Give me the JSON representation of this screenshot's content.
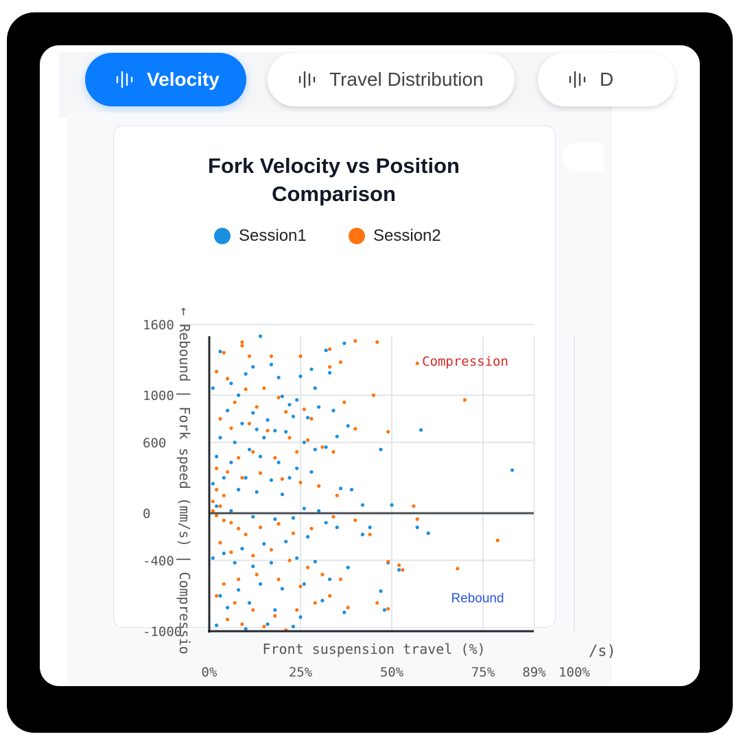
{
  "tabs": [
    {
      "label": "Velocity",
      "icon": "waveform-icon",
      "active": true
    },
    {
      "label": "Travel Distribution",
      "icon": "waveform-icon",
      "active": false
    },
    {
      "label": "D",
      "icon": "waveform-icon",
      "active": false
    }
  ],
  "colors": {
    "accent": "#0a7cff",
    "session1": "#1a8fe0",
    "session2": "#ff7410",
    "compression": "#d42a2a",
    "rebound": "#2b55e0"
  },
  "chart_data": {
    "type": "scatter",
    "title": "Fork Velocity vs Position Comparison",
    "title_lines": [
      "Fork Velocity vs Position",
      "Comparison"
    ],
    "xlabel": "Front suspension travel (%)",
    "ylabel": "← Rebound | Fork speed (mm/s) | Compressio",
    "x_tick_labels": [
      "0%",
      "25%",
      "50%",
      "75%",
      "89%",
      "100%"
    ],
    "x_ticks": [
      0,
      25,
      50,
      75,
      89,
      100
    ],
    "y_tick_labels": [
      "1600",
      "1000",
      "600",
      "0",
      "-400",
      "-1000"
    ],
    "y_ticks": [
      1600,
      1000,
      600,
      0,
      -400,
      -1000
    ],
    "xlim": [
      0,
      100
    ],
    "ylim": [
      -1000,
      1600
    ],
    "grid": true,
    "legend_position": "top",
    "annotations": {
      "compression": "Compression",
      "rebound": "Rebound"
    },
    "clipped_label": "/s)",
    "series": [
      {
        "name": "Session1",
        "points": [
          [
            14,
            1500
          ],
          [
            37,
            1440
          ],
          [
            32,
            1380
          ],
          [
            3,
            1370
          ],
          [
            12,
            1240
          ],
          [
            17,
            1260
          ],
          [
            28,
            1220
          ],
          [
            25,
            1160
          ],
          [
            19,
            1150
          ],
          [
            10,
            1180
          ],
          [
            6,
            1100
          ],
          [
            1,
            1060
          ],
          [
            8,
            1000
          ],
          [
            22,
            920
          ],
          [
            24,
            960
          ],
          [
            20,
            990
          ],
          [
            30,
            900
          ],
          [
            33,
            1190
          ],
          [
            23,
            820
          ],
          [
            16,
            790
          ],
          [
            27,
            810
          ],
          [
            12,
            850
          ],
          [
            5,
            870
          ],
          [
            9,
            760
          ],
          [
            13,
            710
          ],
          [
            18,
            700
          ],
          [
            26,
            600
          ],
          [
            29,
            540
          ],
          [
            35,
            650
          ],
          [
            32,
            560
          ],
          [
            21,
            690
          ],
          [
            15,
            640
          ],
          [
            7,
            600
          ],
          [
            3,
            640
          ],
          [
            11,
            540
          ],
          [
            2,
            480
          ],
          [
            6,
            430
          ],
          [
            14,
            480
          ],
          [
            19,
            430
          ],
          [
            24,
            380
          ],
          [
            28,
            350
          ],
          [
            22,
            300
          ],
          [
            17,
            280
          ],
          [
            10,
            300
          ],
          [
            4,
            300
          ],
          [
            1,
            250
          ],
          [
            8,
            200
          ],
          [
            13,
            180
          ],
          [
            20,
            160
          ],
          [
            36,
            210
          ],
          [
            39,
            200
          ],
          [
            42,
            70
          ],
          [
            50,
            70
          ],
          [
            26,
            40
          ],
          [
            30,
            20
          ],
          [
            2,
            60
          ],
          [
            6,
            20
          ],
          [
            12,
            -30
          ],
          [
            18,
            -50
          ],
          [
            23,
            -40
          ],
          [
            32,
            -80
          ],
          [
            35,
            -120
          ],
          [
            44,
            -120
          ],
          [
            57,
            -120
          ],
          [
            60,
            -170
          ],
          [
            42,
            -180
          ],
          [
            27,
            -200
          ],
          [
            21,
            -240
          ],
          [
            15,
            -260
          ],
          [
            9,
            -300
          ],
          [
            4,
            -340
          ],
          [
            1,
            -380
          ],
          [
            7,
            -420
          ],
          [
            12,
            -450
          ],
          [
            17,
            -420
          ],
          [
            24,
            -380
          ],
          [
            29,
            -410
          ],
          [
            49,
            -420
          ],
          [
            52,
            -480
          ],
          [
            38,
            -460
          ],
          [
            33,
            -560
          ],
          [
            26,
            -600
          ],
          [
            20,
            -640
          ],
          [
            14,
            -600
          ],
          [
            8,
            -650
          ],
          [
            3,
            -700
          ],
          [
            5,
            -800
          ],
          [
            11,
            -760
          ],
          [
            18,
            -820
          ],
          [
            25,
            -880
          ],
          [
            31,
            -740
          ],
          [
            37,
            -840
          ],
          [
            47,
            -660
          ],
          [
            48,
            -820
          ],
          [
            16,
            -940
          ],
          [
            2,
            -950
          ],
          [
            10,
            -980
          ],
          [
            23,
            -960
          ],
          [
            58,
            705
          ],
          [
            47,
            540
          ],
          [
            83,
            365
          ],
          [
            29,
            1060
          ],
          [
            34,
            870
          ],
          [
            38,
            740
          ]
        ]
      },
      {
        "name": "Session2",
        "points": [
          [
            46,
            1450
          ],
          [
            40,
            1460
          ],
          [
            33,
            1390
          ],
          [
            9,
            1450
          ],
          [
            9,
            1420
          ],
          [
            4,
            1360
          ],
          [
            11,
            1330
          ],
          [
            17,
            1330
          ],
          [
            25,
            1330
          ],
          [
            33,
            1240
          ],
          [
            36,
            1280
          ],
          [
            57,
            1270
          ],
          [
            70,
            960
          ],
          [
            45,
            1000
          ],
          [
            37,
            940
          ],
          [
            49,
            690
          ],
          [
            40,
            715
          ],
          [
            2,
            1200
          ],
          [
            5,
            1140
          ],
          [
            10,
            1050
          ],
          [
            15,
            1060
          ],
          [
            19,
            980
          ],
          [
            26,
            880
          ],
          [
            28,
            800
          ],
          [
            21,
            860
          ],
          [
            13,
            900
          ],
          [
            7,
            940
          ],
          [
            3,
            800
          ],
          [
            6,
            720
          ],
          [
            11,
            760
          ],
          [
            16,
            700
          ],
          [
            22,
            640
          ],
          [
            27,
            620
          ],
          [
            31,
            560
          ],
          [
            34,
            520
          ],
          [
            24,
            520
          ],
          [
            18,
            470
          ],
          [
            12,
            520
          ],
          [
            8,
            470
          ],
          [
            2,
            380
          ],
          [
            5,
            350
          ],
          [
            9,
            300
          ],
          [
            14,
            340
          ],
          [
            20,
            290
          ],
          [
            25,
            260
          ],
          [
            30,
            230
          ],
          [
            35,
            150
          ],
          [
            2,
            200
          ],
          [
            4,
            150
          ],
          [
            1,
            100
          ],
          [
            3,
            60
          ],
          [
            1,
            20
          ],
          [
            2,
            -20
          ],
          [
            4,
            -60
          ],
          [
            6,
            -80
          ],
          [
            8,
            -130
          ],
          [
            10,
            -180
          ],
          [
            14,
            -120
          ],
          [
            19,
            -90
          ],
          [
            23,
            -170
          ],
          [
            28,
            -130
          ],
          [
            34,
            -30
          ],
          [
            40,
            -60
          ],
          [
            56,
            60
          ],
          [
            57,
            -50
          ],
          [
            79,
            -230
          ],
          [
            68,
            -470
          ],
          [
            53,
            -480
          ],
          [
            49,
            -810
          ],
          [
            46,
            -760
          ],
          [
            21,
            -990
          ],
          [
            3,
            -250
          ],
          [
            6,
            -330
          ],
          [
            12,
            -360
          ],
          [
            17,
            -310
          ],
          [
            22,
            -400
          ],
          [
            27,
            -460
          ],
          [
            31,
            -520
          ],
          [
            36,
            -560
          ],
          [
            25,
            -620
          ],
          [
            19,
            -560
          ],
          [
            13,
            -520
          ],
          [
            8,
            -560
          ],
          [
            4,
            -600
          ],
          [
            2,
            -700
          ],
          [
            7,
            -760
          ],
          [
            12,
            -820
          ],
          [
            18,
            -870
          ],
          [
            24,
            -820
          ],
          [
            29,
            -760
          ],
          [
            33,
            -700
          ],
          [
            38,
            -800
          ],
          [
            15,
            -960
          ],
          [
            5,
            -900
          ],
          [
            9,
            -940
          ],
          [
            44,
            -180
          ],
          [
            52,
            -440
          ],
          [
            49,
            -410
          ]
        ]
      }
    ],
    "dense_cluster_note_count": 0
  }
}
